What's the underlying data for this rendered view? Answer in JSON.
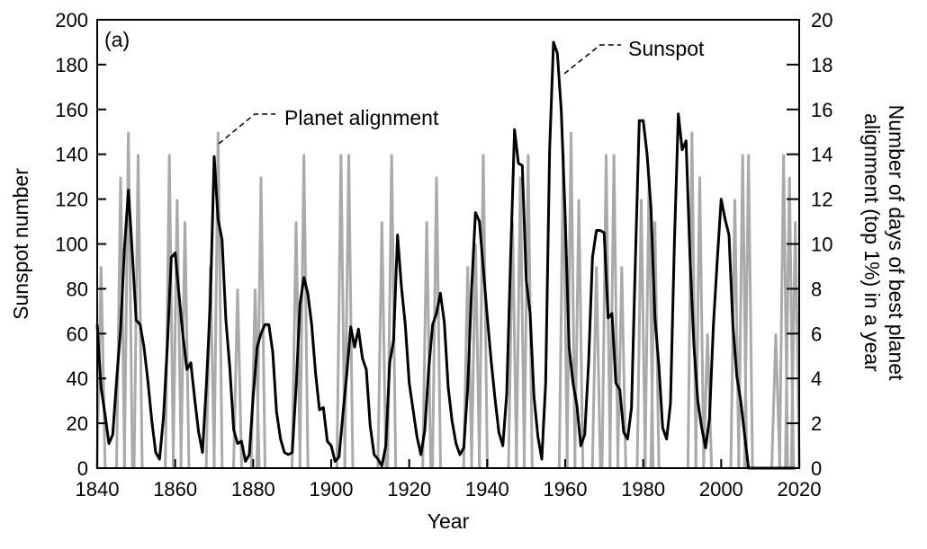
{
  "chart_data": {
    "type": "line",
    "panel_label": "(a)",
    "xlabel": "Year",
    "ylabel": "Sunspot number",
    "ylabel_right_lines": [
      "Number of days of best planet",
      "alignment (top 1%) in a year"
    ],
    "xlim": [
      1840,
      2020
    ],
    "ylim": [
      0,
      200
    ],
    "ylim_right": [
      0,
      20
    ],
    "xticks": [
      1840,
      1860,
      1880,
      1900,
      1920,
      1940,
      1960,
      1980,
      2000,
      2020
    ],
    "yticks": [
      0,
      20,
      40,
      60,
      80,
      100,
      120,
      140,
      160,
      180,
      200
    ],
    "yticks_right": [
      0,
      2,
      4,
      6,
      8,
      10,
      12,
      14,
      16,
      18,
      20
    ],
    "grid": false,
    "annotations": [
      {
        "text": "Planet alignment",
        "x": 1871,
        "y": 145
      },
      {
        "text": "Sunspot",
        "x": 1958,
        "y": 176
      }
    ],
    "series": [
      {
        "name": "Sunspot",
        "axis": "left",
        "color": "#000000",
        "points": [
          [
            1840,
            64
          ],
          [
            1841,
            36
          ],
          [
            1842,
            24
          ],
          [
            1843,
            11
          ],
          [
            1844,
            15
          ],
          [
            1845,
            40
          ],
          [
            1846,
            62
          ],
          [
            1847,
            98
          ],
          [
            1848,
            124
          ],
          [
            1849,
            96
          ],
          [
            1850,
            66
          ],
          [
            1851,
            64
          ],
          [
            1852,
            54
          ],
          [
            1853,
            39
          ],
          [
            1854,
            21
          ],
          [
            1855,
            7
          ],
          [
            1856,
            4
          ],
          [
            1857,
            23
          ],
          [
            1858,
            55
          ],
          [
            1859,
            94
          ],
          [
            1860,
            96
          ],
          [
            1861,
            77
          ],
          [
            1862,
            59
          ],
          [
            1863,
            44
          ],
          [
            1864,
            47
          ],
          [
            1865,
            31
          ],
          [
            1866,
            16
          ],
          [
            1867,
            7
          ],
          [
            1868,
            37
          ],
          [
            1869,
            74
          ],
          [
            1870,
            139
          ],
          [
            1871,
            111
          ],
          [
            1872,
            102
          ],
          [
            1873,
            66
          ],
          [
            1874,
            45
          ],
          [
            1875,
            17
          ],
          [
            1876,
            11
          ],
          [
            1877,
            12
          ],
          [
            1878,
            3
          ],
          [
            1879,
            6
          ],
          [
            1880,
            32
          ],
          [
            1881,
            54
          ],
          [
            1882,
            60
          ],
          [
            1883,
            64
          ],
          [
            1884,
            64
          ],
          [
            1885,
            52
          ],
          [
            1886,
            25
          ],
          [
            1887,
            13
          ],
          [
            1888,
            7
          ],
          [
            1889,
            6
          ],
          [
            1890,
            7
          ],
          [
            1891,
            36
          ],
          [
            1892,
            73
          ],
          [
            1893,
            85
          ],
          [
            1894,
            78
          ],
          [
            1895,
            64
          ],
          [
            1896,
            42
          ],
          [
            1897,
            26
          ],
          [
            1898,
            27
          ],
          [
            1899,
            12
          ],
          [
            1900,
            10
          ],
          [
            1901,
            3
          ],
          [
            1902,
            5
          ],
          [
            1903,
            24
          ],
          [
            1904,
            42
          ],
          [
            1905,
            63
          ],
          [
            1906,
            54
          ],
          [
            1907,
            62
          ],
          [
            1908,
            49
          ],
          [
            1909,
            44
          ],
          [
            1910,
            19
          ],
          [
            1911,
            6
          ],
          [
            1912,
            4
          ],
          [
            1913,
            1
          ],
          [
            1914,
            10
          ],
          [
            1915,
            47
          ],
          [
            1916,
            57
          ],
          [
            1917,
            104
          ],
          [
            1918,
            81
          ],
          [
            1919,
            64
          ],
          [
            1920,
            38
          ],
          [
            1921,
            26
          ],
          [
            1922,
            14
          ],
          [
            1923,
            6
          ],
          [
            1924,
            17
          ],
          [
            1925,
            44
          ],
          [
            1926,
            64
          ],
          [
            1927,
            69
          ],
          [
            1928,
            78
          ],
          [
            1929,
            65
          ],
          [
            1930,
            36
          ],
          [
            1931,
            21
          ],
          [
            1932,
            11
          ],
          [
            1933,
            6
          ],
          [
            1934,
            9
          ],
          [
            1935,
            36
          ],
          [
            1936,
            80
          ],
          [
            1937,
            114
          ],
          [
            1938,
            110
          ],
          [
            1939,
            89
          ],
          [
            1940,
            68
          ],
          [
            1941,
            48
          ],
          [
            1942,
            31
          ],
          [
            1943,
            16
          ],
          [
            1944,
            10
          ],
          [
            1945,
            33
          ],
          [
            1946,
            93
          ],
          [
            1947,
            151
          ],
          [
            1948,
            136
          ],
          [
            1949,
            135
          ],
          [
            1950,
            84
          ],
          [
            1951,
            69
          ],
          [
            1952,
            32
          ],
          [
            1953,
            14
          ],
          [
            1954,
            4
          ],
          [
            1955,
            38
          ],
          [
            1956,
            142
          ],
          [
            1957,
            190
          ],
          [
            1958,
            185
          ],
          [
            1959,
            159
          ],
          [
            1960,
            112
          ],
          [
            1961,
            54
          ],
          [
            1962,
            38
          ],
          [
            1963,
            28
          ],
          [
            1964,
            10
          ],
          [
            1965,
            15
          ],
          [
            1966,
            47
          ],
          [
            1967,
            94
          ],
          [
            1968,
            106
          ],
          [
            1969,
            106
          ],
          [
            1970,
            105
          ],
          [
            1971,
            67
          ],
          [
            1972,
            69
          ],
          [
            1973,
            38
          ],
          [
            1974,
            35
          ],
          [
            1975,
            16
          ],
          [
            1976,
            13
          ],
          [
            1977,
            27
          ],
          [
            1978,
            93
          ],
          [
            1979,
            155
          ],
          [
            1980,
            155
          ],
          [
            1981,
            140
          ],
          [
            1982,
            116
          ],
          [
            1983,
            67
          ],
          [
            1984,
            46
          ],
          [
            1985,
            18
          ],
          [
            1986,
            13
          ],
          [
            1987,
            29
          ],
          [
            1988,
            100
          ],
          [
            1989,
            158
          ],
          [
            1990,
            142
          ],
          [
            1991,
            146
          ],
          [
            1992,
            94
          ],
          [
            1993,
            55
          ],
          [
            1994,
            30
          ],
          [
            1995,
            18
          ],
          [
            1996,
            9
          ],
          [
            1997,
            22
          ],
          [
            1998,
            64
          ],
          [
            1999,
            93
          ],
          [
            2000,
            120
          ],
          [
            2001,
            111
          ],
          [
            2002,
            104
          ],
          [
            2003,
            64
          ],
          [
            2004,
            41
          ],
          [
            2005,
            30
          ],
          [
            2006,
            15
          ],
          [
            2007,
            0
          ],
          [
            2008,
            0
          ],
          [
            2009,
            0
          ],
          [
            2010,
            0
          ],
          [
            2011,
            0
          ],
          [
            2012,
            0
          ],
          [
            2013,
            0
          ],
          [
            2014,
            0
          ],
          [
            2015,
            0
          ],
          [
            2016,
            0
          ],
          [
            2017,
            0
          ],
          [
            2018,
            0
          ],
          [
            2019,
            0
          ]
        ]
      },
      {
        "name": "Planet alignment",
        "axis": "right",
        "color": "#aaaaaa",
        "spikes": [
          {
            "x": 1841,
            "v": 9
          },
          {
            "x": 1846,
            "v": 13
          },
          {
            "x": 1848,
            "v": 15
          },
          {
            "x": 1850.5,
            "v": 14
          },
          {
            "x": 1858.5,
            "v": 14
          },
          {
            "x": 1860.5,
            "v": 12
          },
          {
            "x": 1862.5,
            "v": 11
          },
          {
            "x": 1869,
            "v": 9
          },
          {
            "x": 1871,
            "v": 15
          },
          {
            "x": 1876,
            "v": 8
          },
          {
            "x": 1880.5,
            "v": 8
          },
          {
            "x": 1882,
            "v": 13
          },
          {
            "x": 1891,
            "v": 11
          },
          {
            "x": 1893,
            "v": 14
          },
          {
            "x": 1902.5,
            "v": 14
          },
          {
            "x": 1904.5,
            "v": 14
          },
          {
            "x": 1913,
            "v": 11
          },
          {
            "x": 1915.5,
            "v": 14
          },
          {
            "x": 1924.5,
            "v": 11
          },
          {
            "x": 1927,
            "v": 13
          },
          {
            "x": 1935,
            "v": 9
          },
          {
            "x": 1937,
            "v": 10
          },
          {
            "x": 1939,
            "v": 14
          },
          {
            "x": 1946.5,
            "v": 11
          },
          {
            "x": 1948.5,
            "v": 13
          },
          {
            "x": 1950.5,
            "v": 14
          },
          {
            "x": 1959.5,
            "v": 14
          },
          {
            "x": 1961.5,
            "v": 15
          },
          {
            "x": 1963.5,
            "v": 12
          },
          {
            "x": 1968,
            "v": 9
          },
          {
            "x": 1970.5,
            "v": 14
          },
          {
            "x": 1972.5,
            "v": 14
          },
          {
            "x": 1974.5,
            "v": 9
          },
          {
            "x": 1979.5,
            "v": 12
          },
          {
            "x": 1981.5,
            "v": 13
          },
          {
            "x": 1983,
            "v": 11
          },
          {
            "x": 1992.5,
            "v": 15
          },
          {
            "x": 1994.5,
            "v": 13
          },
          {
            "x": 1996.5,
            "v": 6
          },
          {
            "x": 2003.5,
            "v": 12
          },
          {
            "x": 2005.5,
            "v": 14
          },
          {
            "x": 2007,
            "v": 14
          },
          {
            "x": 2014,
            "v": 6
          },
          {
            "x": 2016,
            "v": 14
          },
          {
            "x": 2017.5,
            "v": 13
          },
          {
            "x": 2019,
            "v": 11
          }
        ]
      }
    ]
  }
}
